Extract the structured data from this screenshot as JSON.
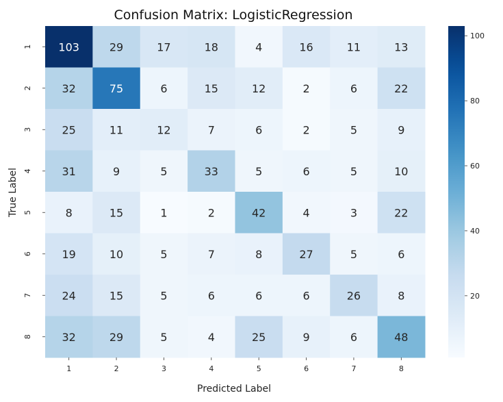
{
  "chart_data": {
    "type": "heatmap",
    "title": "Confusion Matrix: LogisticRegression",
    "xlabel": "Predicted Label",
    "ylabel": "True Label",
    "x_categories": [
      "1",
      "2",
      "3",
      "4",
      "5",
      "6",
      "7",
      "8"
    ],
    "y_categories": [
      "1",
      "2",
      "3",
      "4",
      "5",
      "6",
      "7",
      "8"
    ],
    "values": [
      [
        103,
        29,
        17,
        18,
        4,
        16,
        11,
        13
      ],
      [
        32,
        75,
        6,
        15,
        12,
        2,
        6,
        22
      ],
      [
        25,
        11,
        12,
        7,
        6,
        2,
        5,
        9
      ],
      [
        31,
        9,
        5,
        33,
        5,
        6,
        5,
        10
      ],
      [
        8,
        15,
        1,
        2,
        42,
        4,
        3,
        22
      ],
      [
        19,
        10,
        5,
        7,
        8,
        27,
        5,
        6
      ],
      [
        24,
        15,
        5,
        6,
        6,
        6,
        26,
        8
      ],
      [
        32,
        29,
        5,
        4,
        25,
        9,
        6,
        48
      ]
    ],
    "colormap": "Blues",
    "vmin": 1,
    "vmax": 103,
    "colorbar_ticks": [
      20,
      40,
      60,
      80,
      100
    ],
    "colors": {
      "low": "#f7fbff",
      "high": "#08306b"
    }
  }
}
